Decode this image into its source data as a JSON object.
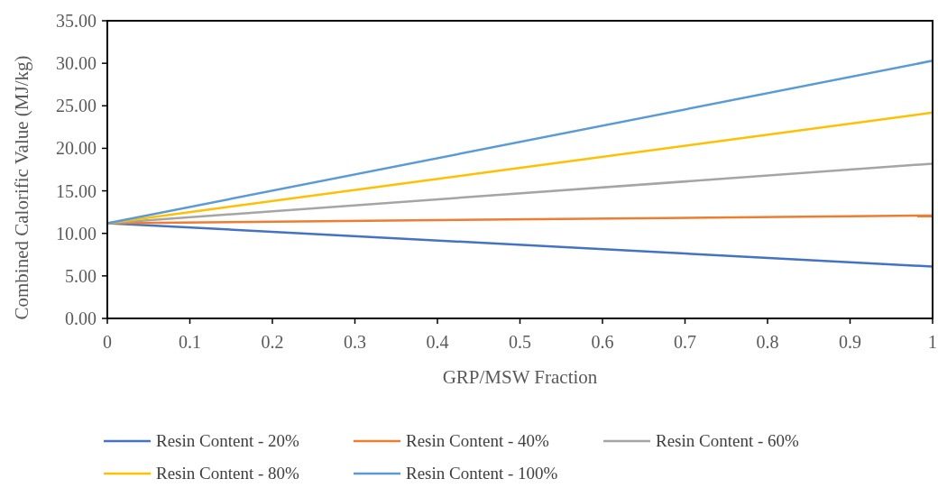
{
  "chart_data": {
    "type": "line",
    "xlabel": "GRP/MSW Fraction",
    "ylabel": "Combined Calorific Value (MJ/kg)",
    "x": [
      0,
      1
    ],
    "series": [
      {
        "name": "Resin Content - 20%",
        "color": "#4472c4",
        "values": [
          11.2,
          6.1
        ]
      },
      {
        "name": "Resin Content - 40%",
        "color": "#ed7d31",
        "values": [
          11.2,
          12.1
        ]
      },
      {
        "name": "Resin Content - 60%",
        "color": "#a5a5a5",
        "values": [
          11.2,
          18.2
        ]
      },
      {
        "name": "Resin Content - 80%",
        "color": "#ffc000",
        "values": [
          11.2,
          24.2
        ]
      },
      {
        "name": "Resin Content - 100%",
        "color": "#5b9bd5",
        "values": [
          11.2,
          30.3
        ]
      }
    ],
    "xlim": [
      0,
      1
    ],
    "xticks": [
      0,
      0.1,
      0.2,
      0.3,
      0.4,
      0.5,
      0.6,
      0.7,
      0.8,
      0.9,
      1
    ],
    "ylim": [
      0,
      35
    ],
    "yticks": [
      {
        "value": 0,
        "label": "0.00"
      },
      {
        "value": 5,
        "label": "5.00"
      },
      {
        "value": 10,
        "label": "10.00"
      },
      {
        "value": 15,
        "label": "15.00"
      },
      {
        "value": 20,
        "label": "20.00"
      },
      {
        "value": 25,
        "label": "25.00"
      },
      {
        "value": 30,
        "label": "30.00"
      },
      {
        "value": 35,
        "label": "35.00"
      }
    ],
    "legend": "bottom",
    "grid": false,
    "marker": "none",
    "line_style": "solid"
  }
}
